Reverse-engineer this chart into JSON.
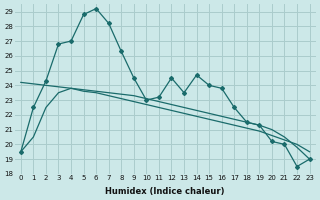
{
  "xlabel": "Humidex (Indice chaleur)",
  "bg_color": "#cce8e8",
  "grid_color": "#aacccc",
  "line_color": "#1a6b6b",
  "xlim": [
    -0.5,
    23.5
  ],
  "ylim": [
    18.0,
    29.5
  ],
  "xticks": [
    0,
    1,
    2,
    3,
    4,
    5,
    6,
    7,
    8,
    9,
    10,
    11,
    12,
    13,
    14,
    15,
    16,
    17,
    18,
    19,
    20,
    21,
    22,
    23
  ],
  "yticks": [
    18,
    19,
    20,
    21,
    22,
    23,
    24,
    25,
    26,
    27,
    28,
    29
  ],
  "curve1_x": [
    0,
    1,
    2,
    3,
    4,
    5,
    6,
    7,
    8,
    9,
    10,
    11,
    12,
    13,
    14,
    15,
    16,
    17,
    18,
    19,
    20,
    21,
    22,
    23
  ],
  "curve1_y": [
    19.5,
    22.5,
    24.3,
    26.8,
    27.0,
    28.8,
    29.2,
    28.2,
    26.3,
    24.5,
    23.0,
    23.2,
    24.5,
    23.5,
    24.7,
    24.0,
    23.8,
    22.5,
    21.5,
    21.3,
    20.2,
    20.0,
    18.5,
    19.0
  ],
  "curve2_x": [
    0,
    1,
    2,
    3,
    4,
    5,
    6,
    7,
    8,
    9,
    10,
    11,
    12,
    13,
    14,
    15,
    16,
    17,
    18,
    19,
    20,
    21,
    22,
    23
  ],
  "curve2_y": [
    24.2,
    24.1,
    24.0,
    23.9,
    23.8,
    23.6,
    23.5,
    23.3,
    23.1,
    22.9,
    22.7,
    22.5,
    22.3,
    22.1,
    21.9,
    21.7,
    21.5,
    21.3,
    21.1,
    20.9,
    20.6,
    20.3,
    20.0,
    19.5
  ],
  "curve3_x": [
    0,
    1,
    2,
    3,
    4,
    5,
    6,
    7,
    8,
    9,
    10,
    11,
    12,
    13,
    14,
    15,
    16,
    17,
    18,
    19,
    20,
    21,
    22,
    23
  ],
  "curve3_y": [
    19.5,
    20.5,
    22.5,
    23.5,
    23.8,
    23.7,
    23.6,
    23.5,
    23.4,
    23.3,
    23.1,
    22.9,
    22.7,
    22.5,
    22.3,
    22.1,
    21.9,
    21.7,
    21.5,
    21.3,
    21.0,
    20.5,
    19.8,
    19.0
  ]
}
